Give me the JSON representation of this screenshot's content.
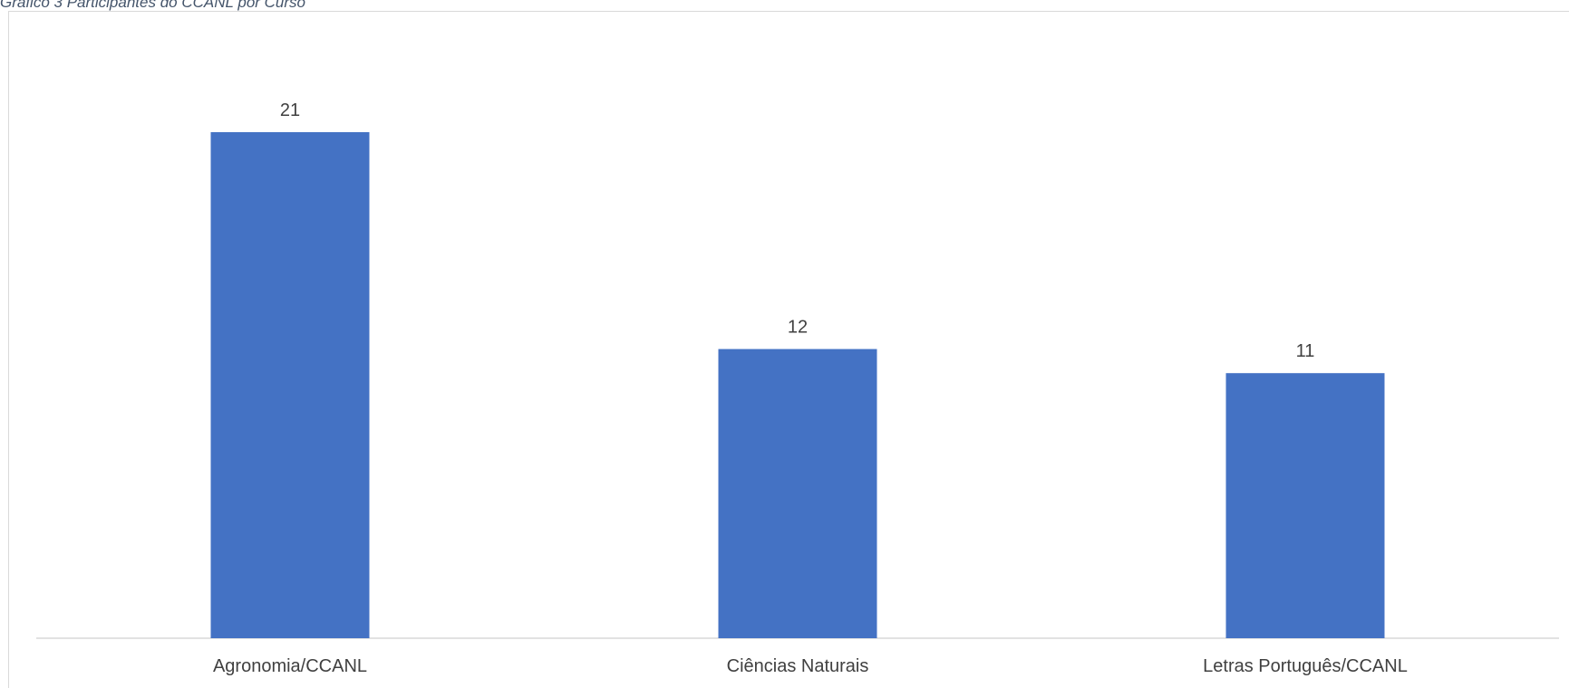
{
  "caption": "Gráfico 3 Participantes do CCANL por Curso",
  "chart_data": {
    "type": "bar",
    "categories": [
      "Agronomia/CCANL",
      "Ciências Naturais",
      "Letras Português/CCANL"
    ],
    "values": [
      21,
      12,
      11
    ],
    "title": "",
    "xlabel": "",
    "ylabel": "",
    "ylim": [
      0,
      21
    ],
    "grid": false,
    "legend": "none",
    "data_labels": true,
    "colors": {
      "bar": "#4472c4",
      "axis": "#d9d9d9",
      "text": "#404040",
      "caption": "#44546a"
    }
  }
}
